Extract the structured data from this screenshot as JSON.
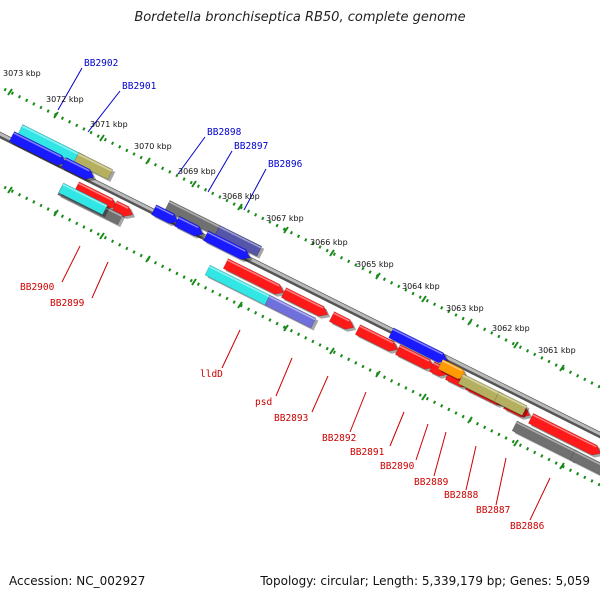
{
  "title": "Bordetella bronchiseptica RB50, complete genome",
  "accession": "Accession: NC_002927",
  "summary": "Topology: circular; Length: 5,339,179 bp; Genes: 5,059",
  "kbp_labels": [
    "3073 kbp",
    "3072 kbp",
    "3071 kbp",
    "3070 kbp",
    "3069 kbp",
    "3068 kbp",
    "3067 kbp",
    "3066 kbp",
    "3065 kbp",
    "3064 kbp",
    "3063 kbp",
    "3062 kbp",
    "3061 kbp"
  ],
  "upper_gene_labels": [
    "BB2902",
    "BB2901",
    "BB2898",
    "BB2897",
    "BB2896"
  ],
  "lower_gene_labels": [
    "BB2900",
    "BB2899",
    "lldD",
    "psd",
    "BB2893",
    "BB2892",
    "BB2891",
    "BB2890",
    "BB2889",
    "BB2888",
    "BB2887",
    "BB2886"
  ],
  "colors": {
    "upper_label": "#0000cc",
    "lower_label": "#cc0000",
    "red": "#ff1a1a",
    "blue": "#1a1aff",
    "cyan": "#33e6e6",
    "khaki": "#b5b060",
    "gray": "#707070",
    "slate": "#5555aa",
    "purple": "#7070dd",
    "orange": "#ff9a00",
    "dotted_line": "#1a8a1a",
    "backbone": "#888888"
  }
}
